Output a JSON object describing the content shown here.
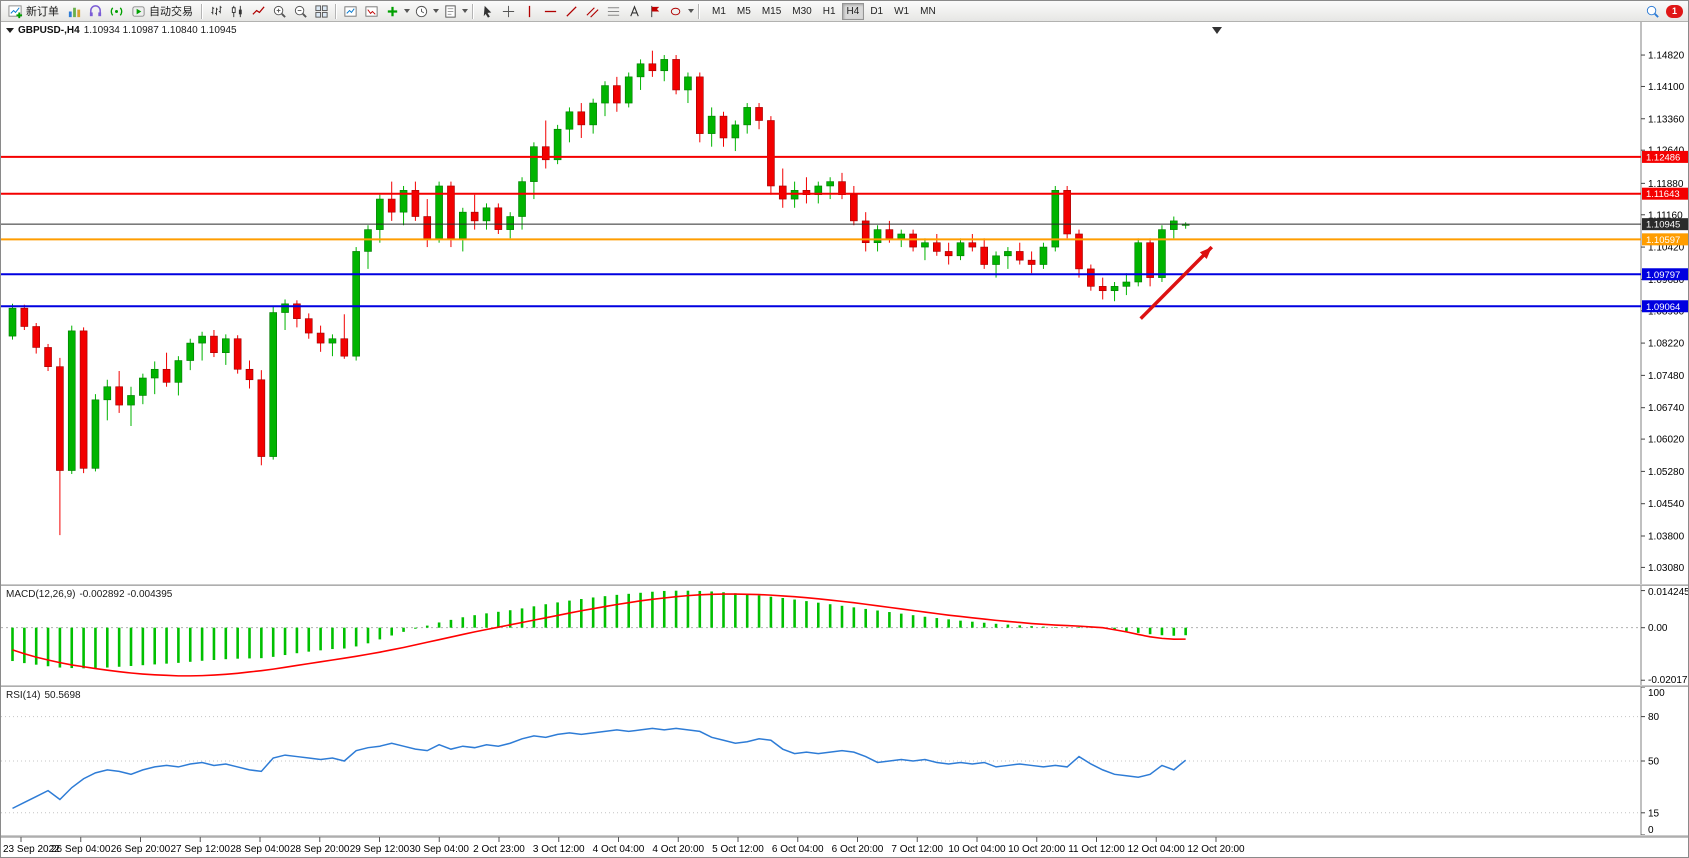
{
  "toolbar": {
    "new_order_label": "新订单",
    "auto_trading_label": "自动交易",
    "timeframes": [
      "M1",
      "M5",
      "M15",
      "M30",
      "H1",
      "H4",
      "D1",
      "W1",
      "MN"
    ],
    "active_timeframe": "H4",
    "badge_count": "1"
  },
  "chart": {
    "symbol": "GBPUSD-,H4",
    "ohlc": "1.10934 1.10987 1.10840 1.10945",
    "macd_label": "MACD(12,26,9)",
    "macd_values": "-0.002892 -0.004395",
    "rsi_label": "RSI(14)",
    "rsi_value": "50.5698"
  },
  "chart_data": [
    {
      "type": "candlestick",
      "title": "GBPUSD-,H4",
      "timeframe": "H4",
      "ohlc_display": [
        1.10934,
        1.10987,
        1.1084,
        1.10945
      ],
      "ylim": [
        1.027,
        1.156
      ],
      "y_ticks": [
        "1.14820",
        "1.14100",
        "1.13360",
        "1.12640",
        "1.11880",
        "1.11160",
        "1.10420",
        "1.09680",
        "1.08960",
        "1.08220",
        "1.07480",
        "1.06740",
        "1.06020",
        "1.05280",
        "1.04540",
        "1.03800",
        "1.03080"
      ],
      "x_labels": [
        "23 Sep 2022",
        "26 Sep 04:00",
        "26 Sep 20:00",
        "27 Sep 12:00",
        "28 Sep 04:00",
        "28 Sep 20:00",
        "29 Sep 12:00",
        "30 Sep 04:00",
        "2 Oct 23:00",
        "3 Oct 12:00",
        "4 Oct 04:00",
        "4 Oct 20:00",
        "5 Oct 12:00",
        "6 Oct 04:00",
        "6 Oct 20:00",
        "7 Oct 12:00",
        "10 Oct 04:00",
        "10 Oct 20:00",
        "11 Oct 12:00",
        "12 Oct 04:00",
        "12 Oct 20:00"
      ],
      "colors": {
        "up": "#00b400",
        "down": "#f20000"
      },
      "levels": [
        {
          "price": 1.12486,
          "label": "1.12486",
          "color": "#f40000",
          "width": 2
        },
        {
          "price": 1.11643,
          "label": "1.11643",
          "color": "#f40000",
          "width": 2
        },
        {
          "price": 1.10945,
          "label": "1.10945",
          "color": "#2b2b2b",
          "width": 1
        },
        {
          "price": 1.10597,
          "label": "1.10597",
          "color": "#ff9d00",
          "width": 2
        },
        {
          "price": 1.09797,
          "label": "1.09797",
          "color": "#0000e0",
          "width": 2
        },
        {
          "price": 1.09064,
          "label": "1.09064",
          "color": "#0000e0",
          "width": 2
        }
      ],
      "arrow": {
        "from_index": 95.5,
        "from_price": 1.0878,
        "to_index": 101.5,
        "to_price": 1.1042,
        "color": "#dd1111"
      },
      "candles": [
        [
          1.0838,
          1.0912,
          1.083,
          1.0902
        ],
        [
          1.0902,
          1.091,
          1.0852,
          1.086
        ],
        [
          1.086,
          1.0868,
          1.0798,
          1.0812
        ],
        [
          1.0812,
          1.082,
          1.0758,
          1.0768
        ],
        [
          1.0768,
          1.0788,
          1.0382,
          1.053
        ],
        [
          1.053,
          1.0862,
          1.0522,
          1.085
        ],
        [
          1.085,
          1.0858,
          1.0524,
          1.0535
        ],
        [
          1.0535,
          1.0705,
          1.0528,
          1.0692
        ],
        [
          1.0692,
          1.0738,
          1.0645,
          1.0722
        ],
        [
          1.0722,
          1.0758,
          1.0662,
          1.068
        ],
        [
          1.068,
          1.0722,
          1.0632,
          1.0702
        ],
        [
          1.0702,
          1.0752,
          1.0682,
          1.0742
        ],
        [
          1.0742,
          1.078,
          1.0705,
          1.0762
        ],
        [
          1.0762,
          1.08,
          1.0722,
          1.0732
        ],
        [
          1.0732,
          1.0792,
          1.0702,
          1.0782
        ],
        [
          1.0782,
          1.0832,
          1.076,
          1.0822
        ],
        [
          1.0822,
          1.0848,
          1.0782,
          1.0838
        ],
        [
          1.0838,
          1.0852,
          1.079,
          1.08
        ],
        [
          1.08,
          1.0842,
          1.0772,
          1.0832
        ],
        [
          1.0832,
          1.084,
          1.0752,
          1.0762
        ],
        [
          1.0762,
          1.0782,
          1.0718,
          1.0738
        ],
        [
          1.0738,
          1.076,
          1.0542,
          1.0562
        ],
        [
          1.0562,
          1.0905,
          1.0555,
          1.0892
        ],
        [
          1.0892,
          1.0922,
          1.0852,
          1.0912
        ],
        [
          1.0912,
          1.092,
          1.0858,
          1.0878
        ],
        [
          1.0878,
          1.089,
          1.0832,
          1.0845
        ],
        [
          1.0845,
          1.0862,
          1.0802,
          1.0822
        ],
        [
          1.0822,
          1.0842,
          1.0792,
          1.0832
        ],
        [
          1.0832,
          1.0888,
          1.0786,
          1.0792
        ],
        [
          1.0792,
          1.1042,
          1.0782,
          1.1032
        ],
        [
          1.1032,
          1.1092,
          1.0992,
          1.1082
        ],
        [
          1.1082,
          1.1162,
          1.1052,
          1.1152
        ],
        [
          1.1152,
          1.1192,
          1.1102,
          1.1122
        ],
        [
          1.1122,
          1.1182,
          1.1092,
          1.1172
        ],
        [
          1.1172,
          1.1192,
          1.1102,
          1.1112
        ],
        [
          1.1112,
          1.1152,
          1.1042,
          1.1062
        ],
        [
          1.1062,
          1.1192,
          1.1052,
          1.1182
        ],
        [
          1.1182,
          1.1192,
          1.1042,
          1.1062
        ],
        [
          1.1062,
          1.1132,
          1.1032,
          1.1122
        ],
        [
          1.1122,
          1.1162,
          1.1082,
          1.1102
        ],
        [
          1.1102,
          1.1142,
          1.1082,
          1.1132
        ],
        [
          1.1132,
          1.1142,
          1.1072,
          1.1082
        ],
        [
          1.1082,
          1.1122,
          1.1062,
          1.1112
        ],
        [
          1.1112,
          1.1202,
          1.1082,
          1.1192
        ],
        [
          1.1192,
          1.1282,
          1.1152,
          1.1272
        ],
        [
          1.1272,
          1.1332,
          1.1222,
          1.1242
        ],
        [
          1.1242,
          1.1322,
          1.1232,
          1.1312
        ],
        [
          1.1312,
          1.1362,
          1.1282,
          1.1352
        ],
        [
          1.1352,
          1.1372,
          1.1292,
          1.1322
        ],
        [
          1.1322,
          1.1382,
          1.1302,
          1.1372
        ],
        [
          1.1372,
          1.1422,
          1.1342,
          1.1412
        ],
        [
          1.1412,
          1.1432,
          1.1352,
          1.1372
        ],
        [
          1.1372,
          1.1442,
          1.1362,
          1.1432
        ],
        [
          1.1432,
          1.1472,
          1.1402,
          1.1462
        ],
        [
          1.1462,
          1.1492,
          1.1432,
          1.1446
        ],
        [
          1.1446,
          1.1482,
          1.1422,
          1.1472
        ],
        [
          1.1472,
          1.1482,
          1.1392,
          1.1402
        ],
        [
          1.1402,
          1.1442,
          1.1372,
          1.1432
        ],
        [
          1.1432,
          1.1442,
          1.1282,
          1.1302
        ],
        [
          1.1302,
          1.1362,
          1.1272,
          1.1342
        ],
        [
          1.1342,
          1.1352,
          1.1272,
          1.1292
        ],
        [
          1.1292,
          1.1332,
          1.1262,
          1.1322
        ],
        [
          1.1322,
          1.1372,
          1.1302,
          1.1362
        ],
        [
          1.1362,
          1.1372,
          1.1312,
          1.1332
        ],
        [
          1.1332,
          1.1342,
          1.1162,
          1.1182
        ],
        [
          1.1182,
          1.1222,
          1.1132,
          1.1152
        ],
        [
          1.1152,
          1.1192,
          1.1132,
          1.1172
        ],
        [
          1.1172,
          1.1202,
          1.1142,
          1.1162
        ],
        [
          1.1162,
          1.1192,
          1.1142,
          1.1182
        ],
        [
          1.1182,
          1.1202,
          1.1152,
          1.1192
        ],
        [
          1.1192,
          1.1212,
          1.1152,
          1.1162
        ],
        [
          1.1162,
          1.1182,
          1.1092,
          1.1102
        ],
        [
          1.1102,
          1.1122,
          1.1032,
          1.1052
        ],
        [
          1.1052,
          1.1092,
          1.1032,
          1.1082
        ],
        [
          1.1082,
          1.1102,
          1.1052,
          1.1062
        ],
        [
          1.1062,
          1.1082,
          1.1042,
          1.1072
        ],
        [
          1.1072,
          1.1082,
          1.1032,
          1.1042
        ],
        [
          1.1042,
          1.1062,
          1.1012,
          1.1052
        ],
        [
          1.1052,
          1.1072,
          1.1022,
          1.1032
        ],
        [
          1.1032,
          1.1052,
          1.1002,
          1.1022
        ],
        [
          1.1022,
          1.1062,
          1.1012,
          1.1052
        ],
        [
          1.1052,
          1.1072,
          1.1032,
          1.1042
        ],
        [
          1.1042,
          1.1062,
          1.0992,
          1.1002
        ],
        [
          1.1002,
          1.1032,
          1.0972,
          1.1022
        ],
        [
          1.1022,
          1.1042,
          1.0992,
          1.1032
        ],
        [
          1.1032,
          1.1052,
          1.1002,
          1.1012
        ],
        [
          1.1012,
          1.1032,
          1.0982,
          1.1002
        ],
        [
          1.1002,
          1.1052,
          1.0992,
          1.1042
        ],
        [
          1.1042,
          1.1182,
          1.1032,
          1.1172
        ],
        [
          1.1172,
          1.1182,
          1.1062,
          1.1072
        ],
        [
          1.1072,
          1.1082,
          1.0972,
          1.0992
        ],
        [
          1.0992,
          1.1002,
          1.0942,
          1.0952
        ],
        [
          1.0952,
          1.0972,
          1.0922,
          1.0942
        ],
        [
          1.0942,
          1.0962,
          1.0918,
          1.0952
        ],
        [
          1.0952,
          1.0982,
          1.0932,
          1.0962
        ],
        [
          1.0962,
          1.1062,
          1.0952,
          1.1052
        ],
        [
          1.1052,
          1.1062,
          1.0952,
          1.0972
        ],
        [
          1.0972,
          1.1092,
          1.0962,
          1.1082
        ],
        [
          1.1082,
          1.1112,
          1.1062,
          1.1102
        ],
        [
          1.10934,
          1.10987,
          1.1084,
          1.10945
        ]
      ]
    },
    {
      "type": "bar",
      "name": "MACD(12,26,9)",
      "main_value": -0.002892,
      "signal_value": -0.004395,
      "ylim": [
        -0.022,
        0.016
      ],
      "y_ticks": [
        {
          "v": 0.014245,
          "label": "0.014245"
        },
        {
          "v": 0,
          "label": "0.00"
        },
        {
          "v": -0.020171,
          "label": "-0.020171"
        }
      ],
      "colors": {
        "histogram": "#00c000",
        "signal": "#ff0000"
      },
      "histogram": [
        -0.0128,
        -0.0136,
        -0.0142,
        -0.0148,
        -0.0153,
        -0.0155,
        -0.0156,
        -0.0155,
        -0.0153,
        -0.015,
        -0.0147,
        -0.0144,
        -0.0141,
        -0.0138,
        -0.0135,
        -0.0131,
        -0.0127,
        -0.0124,
        -0.0121,
        -0.0119,
        -0.0118,
        -0.0117,
        -0.0112,
        -0.0105,
        -0.0098,
        -0.0092,
        -0.0087,
        -0.0082,
        -0.008,
        -0.0072,
        -0.006,
        -0.0045,
        -0.003,
        -0.0016,
        -0.0004,
        0.0008,
        0.002,
        0.003,
        0.004,
        0.0048,
        0.0055,
        0.0061,
        0.0067,
        0.0074,
        0.0082,
        0.009,
        0.0097,
        0.0104,
        0.011,
        0.0116,
        0.0121,
        0.0126,
        0.013,
        0.0134,
        0.0138,
        0.0141,
        0.0142,
        0.0142,
        0.0141,
        0.0139,
        0.0136,
        0.0132,
        0.0128,
        0.0124,
        0.0119,
        0.0114,
        0.0108,
        0.0102,
        0.0096,
        0.009,
        0.0084,
        0.0078,
        0.0072,
        0.0066,
        0.006,
        0.0054,
        0.0048,
        0.0042,
        0.0037,
        0.0032,
        0.0027,
        0.0023,
        0.0019,
        0.0015,
        0.0012,
        0.0009,
        0.0006,
        0.0004,
        0.0002,
        0.0001,
        0.0003,
        0.0002,
        -0.0002,
        -0.0008,
        -0.0014,
        -0.002,
        -0.0025,
        -0.0029,
        -0.0031,
        -0.002892
      ],
      "signal": [
        -0.0085,
        -0.01,
        -0.0113,
        -0.0124,
        -0.0134,
        -0.0143,
        -0.015,
        -0.0157,
        -0.0163,
        -0.0169,
        -0.0174,
        -0.0178,
        -0.0181,
        -0.0183,
        -0.0185,
        -0.0185,
        -0.0184,
        -0.0182,
        -0.0179,
        -0.0175,
        -0.017,
        -0.0165,
        -0.0159,
        -0.0152,
        -0.0145,
        -0.0138,
        -0.0131,
        -0.0124,
        -0.0117,
        -0.011,
        -0.0102,
        -0.0094,
        -0.0085,
        -0.0076,
        -0.0066,
        -0.0056,
        -0.0046,
        -0.0036,
        -0.0026,
        -0.0016,
        -0.0007,
        0.0002,
        0.0011,
        0.002,
        0.0029,
        0.0038,
        0.0047,
        0.0056,
        0.0065,
        0.0073,
        0.0081,
        0.0089,
        0.0096,
        0.0103,
        0.0109,
        0.0114,
        0.0119,
        0.0123,
        0.0126,
        0.0128,
        0.0129,
        0.0129,
        0.0128,
        0.0127,
        0.0125,
        0.0122,
        0.0119,
        0.0115,
        0.0111,
        0.0106,
        0.0101,
        0.0096,
        0.009,
        0.0084,
        0.0078,
        0.0072,
        0.0066,
        0.006,
        0.0054,
        0.0048,
        0.0043,
        0.0038,
        0.0033,
        0.0028,
        0.0024,
        0.002,
        0.0016,
        0.0013,
        0.001,
        0.0008,
        0.0006,
        0.0003,
        0.0,
        -0.0008,
        -0.0016,
        -0.0026,
        -0.0035,
        -0.0041,
        -0.0044,
        -0.004395
      ]
    },
    {
      "type": "line",
      "name": "RSI(14)",
      "current": 50.5698,
      "ylim": [
        0,
        100
      ],
      "y_ticks": [
        {
          "v": 100,
          "label": "100"
        },
        {
          "v": 80,
          "label": "80"
        },
        {
          "v": 50,
          "label": "50"
        },
        {
          "v": 15,
          "label": "15"
        },
        {
          "v": 0,
          "label": "0"
        }
      ],
      "level_lines": [
        80,
        50,
        15
      ],
      "color": "#2e7cd6",
      "values": [
        18,
        22,
        26,
        30,
        24,
        32,
        38,
        42,
        44,
        43,
        41,
        44,
        46,
        47,
        46,
        48,
        49,
        47,
        48,
        46,
        44,
        43,
        52,
        54,
        53,
        52,
        51,
        52,
        50,
        57,
        59,
        60,
        62,
        60,
        58,
        57,
        61,
        58,
        60,
        59,
        61,
        60,
        62,
        65,
        67,
        66,
        68,
        69,
        68,
        69,
        70,
        71,
        70,
        71,
        72,
        71,
        72,
        71,
        70,
        66,
        64,
        62,
        63,
        65,
        64,
        58,
        55,
        56,
        55,
        56,
        57,
        56,
        53,
        49,
        50,
        51,
        50,
        51,
        49,
        48,
        49,
        48,
        49,
        46,
        47,
        48,
        47,
        46,
        47,
        46,
        53,
        48,
        44,
        41,
        40,
        39,
        41,
        47,
        44,
        50.57
      ]
    }
  ]
}
